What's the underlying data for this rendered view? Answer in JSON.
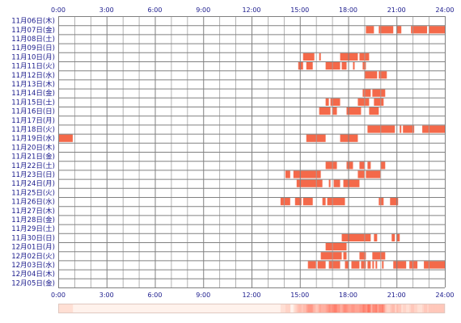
{
  "chart_data": {
    "type": "heatmap",
    "title": "",
    "xlabel": "",
    "ylabel": "",
    "xlim": [
      0,
      24
    ],
    "x_tick_labels": [
      "0:00",
      "3:00",
      "6:00",
      "9:00",
      "12:00",
      "15:00",
      "18:00",
      "21:00",
      "24:00"
    ],
    "days": [
      "11月06日(木)",
      "11月07日(金)",
      "11月08日(土)",
      "11月09日(日)",
      "11月10日(月)",
      "11月11日(火)",
      "11月12日(水)",
      "11月13日(木)",
      "11月14日(金)",
      "11月15日(土)",
      "11月16日(日)",
      "11月17日(月)",
      "11月18日(火)",
      "11月19日(水)",
      "11月20日(木)",
      "11月21日(金)",
      "11月22日(土)",
      "11月23日(日)",
      "11月24日(月)",
      "11月25日(火)",
      "11月26日(水)",
      "11月27日(木)",
      "11月28日(金)",
      "11月29日(土)",
      "11月30日(日)",
      "12月01日(月)",
      "12月02日(火)",
      "12月03日(水)",
      "12月04日(木)",
      "12月05日(金)"
    ],
    "grid": true,
    "bar_color": "#f4694a",
    "summary_strip": true,
    "active_intervals": [
      [],
      [
        [
          19.1,
          19.6
        ],
        [
          19.9,
          20.8
        ],
        [
          21.0,
          21.3
        ],
        [
          21.9,
          22.9
        ],
        [
          23.0,
          24.0
        ]
      ],
      [],
      [],
      [
        [
          15.2,
          15.9
        ],
        [
          16.2,
          16.3
        ],
        [
          17.5,
          18.6
        ],
        [
          18.7,
          19.3
        ]
      ],
      [
        [
          14.9,
          15.2
        ],
        [
          15.4,
          15.8
        ],
        [
          16.6,
          17.5
        ],
        [
          17.6,
          17.9
        ],
        [
          18.3,
          18.4
        ],
        [
          18.9,
          19.1
        ]
      ],
      [
        [
          19.0,
          19.8
        ],
        [
          19.9,
          20.4
        ]
      ],
      [],
      [
        [
          18.9,
          19.4
        ],
        [
          19.5,
          20.3
        ]
      ],
      [
        [
          16.6,
          16.8
        ],
        [
          16.9,
          17.5
        ],
        [
          18.6,
          19.3
        ],
        [
          19.6,
          20.2
        ]
      ],
      [
        [
          16.2,
          16.9
        ],
        [
          17.0,
          17.3
        ],
        [
          17.9,
          18.8
        ],
        [
          19.3,
          19.9
        ]
      ],
      [],
      [
        [
          19.2,
          20.9
        ],
        [
          21.2,
          21.3
        ],
        [
          21.4,
          22.1
        ],
        [
          22.6,
          24.0
        ]
      ],
      [
        [
          0.0,
          0.9
        ],
        [
          15.4,
          16.6
        ],
        [
          17.5,
          18.6
        ]
      ],
      [],
      [],
      [
        [
          16.6,
          17.3
        ],
        [
          17.9,
          18.3
        ],
        [
          18.7,
          19.0
        ],
        [
          19.2,
          19.4
        ],
        [
          20.0,
          20.3
        ]
      ],
      [
        [
          14.1,
          14.4
        ],
        [
          14.6,
          16.3
        ],
        [
          18.6,
          19.0
        ],
        [
          19.1,
          20.0
        ]
      ],
      [
        [
          14.8,
          16.4
        ],
        [
          16.8,
          16.9
        ],
        [
          17.1,
          17.5
        ],
        [
          17.7,
          18.7
        ]
      ],
      [],
      [
        [
          13.8,
          14.4
        ],
        [
          14.7,
          15.1
        ],
        [
          15.2,
          15.8
        ],
        [
          16.4,
          16.6
        ],
        [
          16.7,
          17.8
        ],
        [
          19.9,
          20.2
        ],
        [
          20.6,
          21.1
        ]
      ],
      [],
      [],
      [],
      [
        [
          17.6,
          19.4
        ],
        [
          19.6,
          19.8
        ],
        [
          20.7,
          20.9
        ],
        [
          21.0,
          21.2
        ]
      ],
      [
        [
          16.6,
          17.9
        ]
      ],
      [
        [
          16.3,
          17.6
        ],
        [
          17.7,
          17.9
        ],
        [
          18.7,
          19.1
        ],
        [
          19.5,
          20.3
        ]
      ],
      [
        [
          15.5,
          16.0
        ],
        [
          16.1,
          16.6
        ],
        [
          16.8,
          17.5
        ],
        [
          17.8,
          18.0
        ],
        [
          18.2,
          18.7
        ],
        [
          18.8,
          19.1
        ],
        [
          19.2,
          19.4
        ],
        [
          19.5,
          19.6
        ],
        [
          19.7,
          19.8
        ],
        [
          20.1,
          20.2
        ],
        [
          20.8,
          21.6
        ],
        [
          21.8,
          22.3
        ],
        [
          22.7,
          24.0
        ]
      ],
      [],
      []
    ]
  }
}
